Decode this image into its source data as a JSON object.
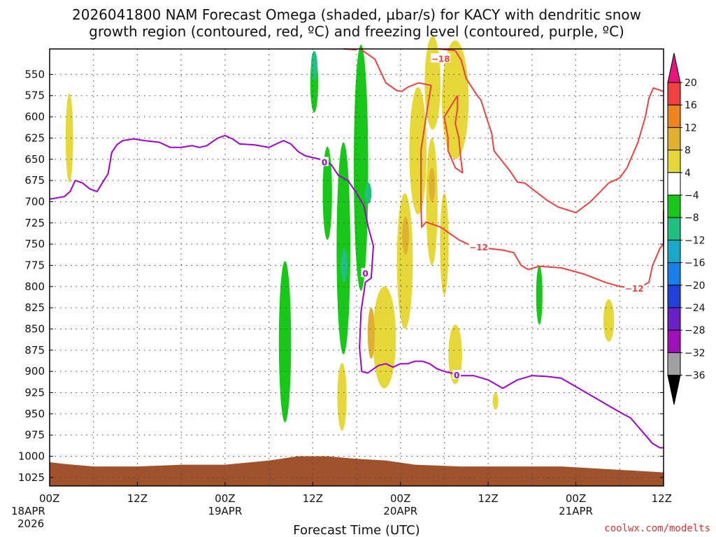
{
  "chart_data": {
    "type": "heatmap",
    "title_line1": "2026041800 NAM Forecast Omega (shaded, µbar/s) for KACY with dendritic snow",
    "title_line2": "growth region (contoured, red, ºC) and freezing level (contoured, purple, ºC)",
    "xlabel": "Forecast Time (UTC)",
    "credit": "coolwx.com/modelts",
    "x_range_hours": [
      0,
      84
    ],
    "x_ticks": [
      {
        "hour": 0,
        "label": "00Z",
        "sub1": "18APR",
        "sub2": "2026"
      },
      {
        "hour": 12,
        "label": "12Z",
        "sub1": "",
        "sub2": ""
      },
      {
        "hour": 24,
        "label": "00Z",
        "sub1": "19APR",
        "sub2": ""
      },
      {
        "hour": 36,
        "label": "12Z",
        "sub1": "",
        "sub2": ""
      },
      {
        "hour": 48,
        "label": "00Z",
        "sub1": "20APR",
        "sub2": ""
      },
      {
        "hour": 60,
        "label": "12Z",
        "sub1": "",
        "sub2": ""
      },
      {
        "hour": 72,
        "label": "00Z",
        "sub1": "21APR",
        "sub2": ""
      },
      {
        "hour": 84,
        "label": "12Z",
        "sub1": "",
        "sub2": ""
      }
    ],
    "y_range_mb": [
      1035,
      520
    ],
    "y_ticks": [
      550,
      575,
      600,
      625,
      650,
      675,
      700,
      725,
      750,
      775,
      800,
      825,
      850,
      875,
      900,
      925,
      950,
      975,
      1000,
      1025
    ],
    "colorbar": {
      "labels": [
        "20",
        "16",
        "12",
        "8",
        "4",
        "−4",
        "−8",
        "−12",
        "−16",
        "−20",
        "−24",
        "−28",
        "−32",
        "−36"
      ],
      "colors": [
        "#e8167a",
        "#f24040",
        "#ee8420",
        "#e0b030",
        "#e6d838",
        "#ffffff",
        "#18c818",
        "#20c080",
        "#18a8c8",
        "#1880e8",
        "#2040d8",
        "#6820c8",
        "#a010b8",
        "#a0a0a0",
        "#000000"
      ]
    },
    "omega_regions": [
      {
        "color": "#e6d838",
        "h": 2.7,
        "p": 625,
        "dh": 0.45,
        "dp": 105
      },
      {
        "color": "#18c818",
        "h": 32.2,
        "p": 865,
        "dh": 1.1,
        "dp": 190
      },
      {
        "color": "#18c818",
        "h": 36.2,
        "p": 560,
        "dh": 0.5,
        "dp": 70
      },
      {
        "color": "#20c080",
        "h": 36.2,
        "p": 540,
        "dh": 0.3,
        "dp": 35
      },
      {
        "color": "#18c818",
        "h": 38.0,
        "p": 690,
        "dh": 0.7,
        "dp": 110
      },
      {
        "color": "#18c818",
        "h": 40.2,
        "p": 755,
        "dh": 1.3,
        "dp": 250
      },
      {
        "color": "#20c080",
        "h": 40.3,
        "p": 775,
        "dh": 0.35,
        "dp": 40
      },
      {
        "color": "#18c818",
        "h": 42.6,
        "p": 660,
        "dh": 1.4,
        "dp": 290
      },
      {
        "color": "#20c080",
        "h": 43.6,
        "p": 690,
        "dh": 0.3,
        "dp": 25
      },
      {
        "color": "#e6d838",
        "h": 40.0,
        "p": 930,
        "dh": 0.7,
        "dp": 80
      },
      {
        "color": "#e6d838",
        "h": 45.8,
        "p": 860,
        "dh": 2.6,
        "dp": 120
      },
      {
        "color": "#e0b030",
        "h": 44.0,
        "p": 855,
        "dh": 0.4,
        "dp": 60
      },
      {
        "color": "#e6d838",
        "h": 48.6,
        "p": 770,
        "dh": 1.6,
        "dp": 160
      },
      {
        "color": "#e0b030",
        "h": 48.7,
        "p": 740,
        "dh": 0.35,
        "dp": 45
      },
      {
        "color": "#e6d838",
        "h": 50.4,
        "p": 640,
        "dh": 1.8,
        "dp": 150
      },
      {
        "color": "#e6d838",
        "h": 52.4,
        "p": 560,
        "dh": 1.6,
        "dp": 110
      },
      {
        "color": "#e6d838",
        "h": 55.5,
        "p": 580,
        "dh": 3.1,
        "dp": 140
      },
      {
        "color": "#e6d838",
        "h": 52.3,
        "p": 700,
        "dh": 1.0,
        "dp": 150
      },
      {
        "color": "#e0b030",
        "h": 52.3,
        "p": 680,
        "dh": 0.3,
        "dp": 40
      },
      {
        "color": "#e6d838",
        "h": 54.0,
        "p": 750,
        "dh": 0.6,
        "dp": 120
      },
      {
        "color": "#e6d838",
        "h": 55.5,
        "p": 880,
        "dh": 1.3,
        "dp": 70
      },
      {
        "color": "#e6d838",
        "h": 61.0,
        "p": 935,
        "dh": 0.2,
        "dp": 20
      },
      {
        "color": "#18c818",
        "h": 67.0,
        "p": 810,
        "dh": 0.3,
        "dp": 70
      },
      {
        "color": "#e6d838",
        "h": 76.5,
        "p": 840,
        "dh": 0.9,
        "dp": 50
      }
    ],
    "dendritic_contour": {
      "color": "#f04040",
      "levels": [
        "-18",
        "-12"
      ],
      "label_positions": [
        {
          "text": "−18",
          "h": 53.5,
          "p": 531
        },
        {
          "text": "−12",
          "h": 58.7,
          "p": 753
        },
        {
          "text": "−12",
          "h": 80.0,
          "p": 802
        }
      ],
      "segments": [
        [
          [
            40.2,
            520
          ],
          [
            42.0,
            521
          ]
        ],
        [
          [
            42.5,
            520
          ],
          [
            44.5,
            532
          ],
          [
            46.0,
            560
          ],
          [
            47.5,
            569
          ],
          [
            48.2,
            570
          ],
          [
            49.0,
            565
          ],
          [
            50.5,
            560
          ],
          [
            52.2,
            563
          ],
          [
            51.5,
            600
          ],
          [
            50.8,
            640
          ],
          [
            50.8,
            700
          ],
          [
            50.9,
            730
          ],
          [
            51.5,
            724
          ],
          [
            53.5,
            730
          ],
          [
            56.0,
            745
          ],
          [
            58.0,
            753
          ],
          [
            60.0,
            755
          ],
          [
            62.0,
            757
          ],
          [
            63.5,
            760
          ],
          [
            64.5,
            775
          ],
          [
            65.5,
            780
          ],
          [
            67.0,
            776
          ],
          [
            70.0,
            778
          ],
          [
            73.0,
            785
          ],
          [
            76.0,
            795
          ],
          [
            78.0,
            800
          ],
          [
            80.5,
            802
          ],
          [
            82.0,
            795
          ],
          [
            82.5,
            775
          ],
          [
            83.5,
            755
          ],
          [
            84.0,
            750
          ],
          [
            84.0,
            710
          ]
        ],
        [
          [
            53.2,
            520
          ],
          [
            55.5,
            522
          ],
          [
            56.3,
            533
          ],
          [
            57.0,
            555
          ],
          [
            58.5,
            575
          ],
          [
            59.0,
            580
          ],
          [
            60.5,
            620
          ],
          [
            60.8,
            640
          ],
          [
            63.0,
            664
          ],
          [
            64.0,
            677
          ],
          [
            65.0,
            678
          ],
          [
            66.5,
            688
          ],
          [
            68.0,
            698
          ],
          [
            69.5,
            706
          ],
          [
            72.0,
            713
          ],
          [
            74.0,
            700
          ],
          [
            76.5,
            678
          ],
          [
            78.0,
            672
          ],
          [
            79.0,
            660
          ],
          [
            80.5,
            630
          ],
          [
            81.5,
            600
          ],
          [
            82.0,
            578
          ],
          [
            82.6,
            566
          ],
          [
            84.0,
            570
          ]
        ],
        [
          [
            55.8,
            575
          ],
          [
            54.0,
            600
          ],
          [
            54.5,
            625
          ],
          [
            54.5,
            640
          ],
          [
            55.5,
            660
          ],
          [
            56.5,
            666
          ],
          [
            56.2,
            645
          ],
          [
            56.0,
            625
          ],
          [
            55.5,
            608
          ],
          [
            55.8,
            590
          ],
          [
            55.8,
            575
          ]
        ]
      ]
    },
    "freezing_contour": {
      "color": "#a000d0",
      "level": "0",
      "label_positions": [
        {
          "text": "0",
          "h": 37.6,
          "p": 653
        },
        {
          "text": "0",
          "h": 43.2,
          "p": 784
        },
        {
          "text": "0",
          "h": 55.7,
          "p": 904
        }
      ],
      "segments": [
        [
          [
            0,
            697
          ],
          [
            2.0,
            694
          ],
          [
            2.8,
            688
          ],
          [
            3.5,
            675
          ],
          [
            4.5,
            678
          ],
          [
            5.5,
            685
          ],
          [
            6.5,
            688
          ],
          [
            7.2,
            678
          ],
          [
            8.0,
            667
          ],
          [
            8.5,
            642
          ],
          [
            9.2,
            633
          ],
          [
            10.0,
            628
          ],
          [
            11.5,
            626
          ],
          [
            13.0,
            628
          ],
          [
            15.0,
            630
          ],
          [
            16.5,
            636
          ],
          [
            18.0,
            636
          ],
          [
            19.5,
            634
          ],
          [
            20.5,
            636
          ],
          [
            21.5,
            634
          ],
          [
            23.0,
            625
          ],
          [
            24.0,
            622
          ],
          [
            25.0,
            626
          ],
          [
            26.0,
            632
          ],
          [
            28.0,
            633
          ],
          [
            30.0,
            636
          ],
          [
            31.0,
            632
          ],
          [
            32.0,
            628
          ],
          [
            33.0,
            632
          ],
          [
            34.0,
            641
          ],
          [
            35.0,
            646
          ],
          [
            36.5,
            649
          ],
          [
            37.0,
            650
          ],
          [
            38.5,
            656
          ],
          [
            39.5,
            669
          ],
          [
            40.8,
            675
          ],
          [
            42.0,
            690
          ],
          [
            43.0,
            705
          ],
          [
            43.6,
            730
          ],
          [
            44.3,
            752
          ],
          [
            44.0,
            790
          ],
          [
            43.2,
            795
          ],
          [
            42.6,
            830
          ],
          [
            42.4,
            872
          ],
          [
            42.7,
            900
          ],
          [
            43.5,
            902
          ],
          [
            45.0,
            893
          ],
          [
            46.0,
            891
          ],
          [
            47.0,
            895
          ],
          [
            48.0,
            891
          ],
          [
            49.0,
            891
          ],
          [
            50.0,
            888
          ],
          [
            51.0,
            888
          ],
          [
            52.0,
            891
          ],
          [
            53.0,
            897
          ],
          [
            54.0,
            900
          ],
          [
            55.0,
            902
          ],
          [
            56.0,
            905
          ],
          [
            58.0,
            905
          ],
          [
            60.0,
            910
          ],
          [
            62.0,
            920
          ],
          [
            64.0,
            910
          ],
          [
            66.0,
            905
          ],
          [
            68.0,
            906
          ],
          [
            70.0,
            908
          ],
          [
            72.0,
            918
          ],
          [
            74.0,
            928
          ],
          [
            76.0,
            938
          ],
          [
            78.0,
            948
          ],
          [
            79.5,
            955
          ],
          [
            80.5,
            965
          ],
          [
            81.5,
            975
          ],
          [
            82.5,
            985
          ],
          [
            83.5,
            990
          ],
          [
            84.0,
            990
          ]
        ]
      ]
    },
    "terrain": {
      "color": "#a0522d",
      "top_profile": [
        [
          0,
          1007
        ],
        [
          2,
          1009
        ],
        [
          6,
          1012
        ],
        [
          12,
          1012
        ],
        [
          18,
          1010
        ],
        [
          24,
          1010
        ],
        [
          30,
          1005
        ],
        [
          34,
          1000
        ],
        [
          38,
          1000
        ],
        [
          42,
          1003
        ],
        [
          46,
          1005
        ],
        [
          50,
          1010
        ],
        [
          56,
          1012
        ],
        [
          62,
          1012
        ],
        [
          70,
          1012
        ],
        [
          76,
          1015
        ],
        [
          80,
          1017
        ],
        [
          84,
          1019
        ]
      ]
    }
  }
}
